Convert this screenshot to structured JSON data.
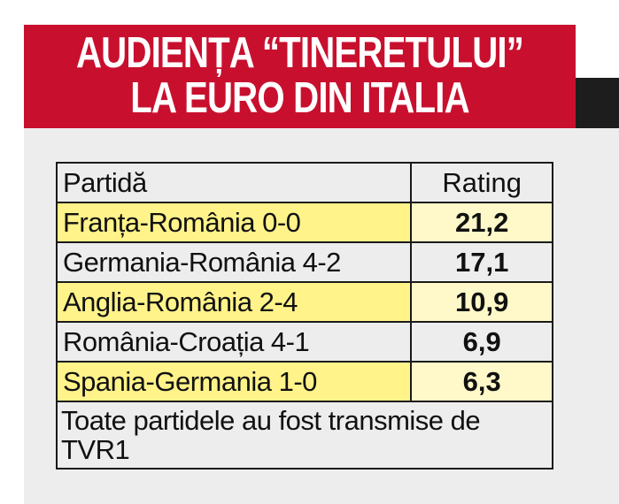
{
  "title": {
    "line1": "AUDIENȚA “TINERETULUI”",
    "line2": "LA EURO DIN ITALIA"
  },
  "table": {
    "headers": [
      "Partidă",
      "Rating"
    ],
    "rows": [
      {
        "match": "Franța-România 0-0",
        "rating": "21,2",
        "highlighted": true
      },
      {
        "match": "Germania-România 4-2",
        "rating": "17,1",
        "highlighted": false
      },
      {
        "match": "Anglia-România 2-4",
        "rating": "10,9",
        "highlighted": true
      },
      {
        "match": "România-Croația 4-1",
        "rating": "6,9",
        "highlighted": false
      },
      {
        "match": "Spania-Germania 1-0",
        "rating": "6,3",
        "highlighted": true
      }
    ],
    "note": "Toate partidele au fost transmise de TVR1"
  },
  "colors": {
    "header_bg": "#c8102e",
    "highlight": "#fff38a",
    "panel_bg": "#ededed"
  }
}
